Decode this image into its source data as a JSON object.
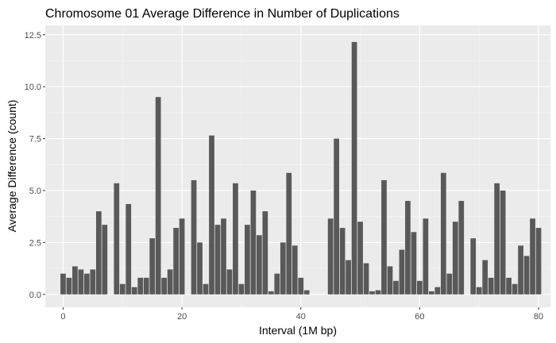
{
  "chart_data": {
    "type": "bar",
    "title": "Chromosome 01 Average Difference in Number of Duplications",
    "xlabel": "Interval (1M bp)",
    "ylabel": "Average Difference (count)",
    "xlim": [
      -3,
      82
    ],
    "ylim": [
      -0.62,
      12.95
    ],
    "xticks": [
      0,
      20,
      40,
      60,
      80
    ],
    "yticks": [
      0,
      2.5,
      5,
      7.5,
      10,
      12.5
    ],
    "xtick_labels": [
      "0",
      "20",
      "40",
      "60",
      "80"
    ],
    "ytick_labels": [
      "0.0",
      "2.5",
      "5.0",
      "7.5",
      "10.0",
      "12.5"
    ],
    "grid": true,
    "legend": "none",
    "colors": {
      "bar": "#595959",
      "panel": "#ebebeb",
      "grid_major": "#ffffff",
      "grid_minor": "#f5f5f5"
    },
    "x": [
      0,
      1,
      2,
      3,
      4,
      5,
      6,
      7,
      8,
      9,
      10,
      11,
      12,
      13,
      14,
      15,
      16,
      17,
      18,
      19,
      20,
      21,
      22,
      23,
      24,
      25,
      26,
      27,
      28,
      29,
      30,
      31,
      32,
      33,
      34,
      35,
      36,
      37,
      38,
      39,
      40,
      41,
      42,
      43,
      44,
      45,
      46,
      47,
      48,
      49,
      50,
      51,
      52,
      53,
      54,
      55,
      56,
      57,
      58,
      59,
      60,
      61,
      62,
      63,
      64,
      65,
      66,
      67,
      68,
      69,
      70,
      71,
      72,
      73,
      74,
      75,
      76,
      77,
      78,
      79,
      80
    ],
    "values": [
      1.0,
      0.8,
      1.35,
      1.2,
      1.0,
      1.2,
      4.0,
      3.35,
      0,
      5.35,
      0.5,
      4.35,
      0.35,
      0.8,
      0.8,
      2.7,
      9.5,
      0.8,
      1.2,
      3.2,
      3.65,
      0,
      5.5,
      2.5,
      0.5,
      7.65,
      3.35,
      3.65,
      1.2,
      5.35,
      0.5,
      3.35,
      5.0,
      2.85,
      4.0,
      0.15,
      1.0,
      2.5,
      5.85,
      2.35,
      0.8,
      0.2,
      0,
      0,
      0,
      3.65,
      7.5,
      3.2,
      1.65,
      12.15,
      3.5,
      1.5,
      0.15,
      0.2,
      5.5,
      1.35,
      0.65,
      2.15,
      4.5,
      3.0,
      0.65,
      3.65,
      0.15,
      0.35,
      5.85,
      1.0,
      3.5,
      4.5,
      0,
      2.7,
      0.35,
      1.65,
      0.8,
      5.35,
      5.0,
      0.8,
      0.5,
      2.35,
      1.85,
      3.65,
      3.2
    ]
  }
}
